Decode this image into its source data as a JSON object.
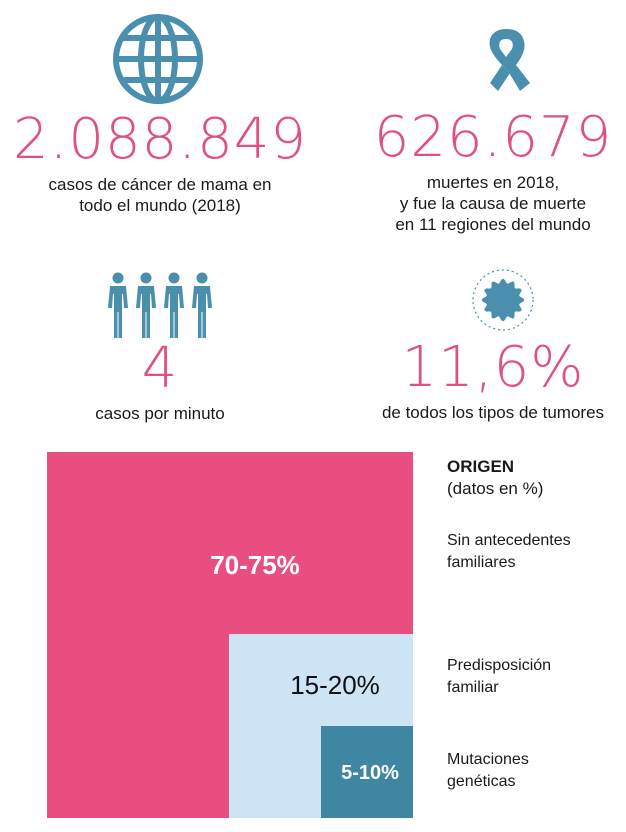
{
  "stats": [
    {
      "value": "2.088.849",
      "caption": [
        "casos de cáncer de mama en",
        "todo el mundo (2018)"
      ],
      "icon": "globe-icon"
    },
    {
      "value": "626.679",
      "caption": [
        "muertes en 2018,",
        "y fue la causa de muerte",
        "en 11 regiones del mundo"
      ],
      "icon": "ribbon-icon"
    },
    {
      "value": "4",
      "caption": [
        "casos por minuto"
      ],
      "icon": "women-icon"
    },
    {
      "value": "11,6%",
      "caption": [
        "de todos los tipos de tumores"
      ],
      "icon": "tumor-cell-icon"
    }
  ],
  "chart_data": {
    "type": "treemap",
    "title": "ORIGEN",
    "subtitle": "(datos en %)",
    "categories": [
      "Sin antecedentes familiares",
      "Predisposición familiar",
      "Mutaciones genéticas"
    ],
    "labels": [
      "70-75%",
      "15-20%",
      "5-10%"
    ],
    "ranges": [
      [
        70,
        75
      ],
      [
        15,
        20
      ],
      [
        5,
        10
      ]
    ]
  },
  "legend": [
    {
      "lines": [
        "Sin antecedentes",
        "familiares"
      ]
    },
    {
      "lines": [
        "Predisposición",
        "familiar"
      ]
    },
    {
      "lines": [
        "Mutaciones",
        "genéticas"
      ]
    }
  ],
  "colors": {
    "pink": "#e84f80",
    "light_blue": "#cde4f5",
    "teal": "#3f86a3",
    "icon_blue": "#4a8fae",
    "number_pink": "#e0527e"
  }
}
